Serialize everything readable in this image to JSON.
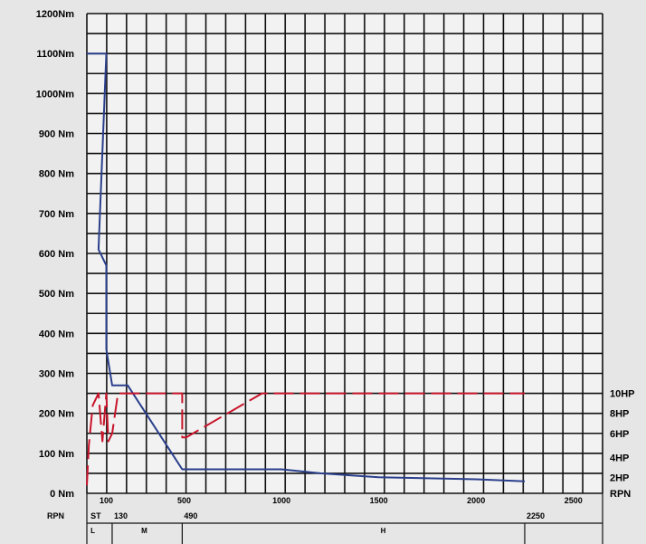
{
  "chart_data": {
    "type": "line",
    "y_axis": {
      "ticks": [
        "0   Nm",
        "100 Nm",
        "200 Nm",
        "300 Nm",
        "400 Nm",
        "500 Nm",
        "600 Nm",
        "700 Nm",
        "800 Nm",
        "900 Nm",
        "1000Nm",
        "1100Nm",
        "1200Nm"
      ],
      "tick_values": [
        0,
        100,
        200,
        300,
        400,
        500,
        600,
        700,
        800,
        900,
        1000,
        1100,
        1200
      ],
      "ylim": [
        0,
        1200
      ]
    },
    "x_axis": {
      "label": "RPN",
      "ticks": [
        "100",
        "500",
        "1000",
        "1500",
        "2000",
        "2500"
      ],
      "tick_values": [
        100,
        500,
        1000,
        1500,
        2000,
        2500
      ],
      "xlim": [
        0,
        2650
      ]
    },
    "secondary_axis": {
      "label": "RPN",
      "ticks": [
        "2HP",
        "4HP",
        "6HP",
        "8HP",
        "10HP"
      ],
      "tick_values": [
        40,
        90,
        150,
        200,
        250
      ]
    },
    "secondary_row": {
      "labels": [
        {
          "text": "ST",
          "x": 10
        },
        {
          "text": "130",
          "x": 130
        },
        {
          "text": "490",
          "x": 490
        },
        {
          "text": "2250",
          "x": 2250
        }
      ]
    },
    "bottom_row": {
      "labels": [
        {
          "text": "L",
          "x": 10
        },
        {
          "text": "M",
          "x": 270
        },
        {
          "text": "H",
          "x": 1500
        }
      ]
    },
    "grid": true,
    "series": [
      {
        "color": "#2a3f8c",
        "style": "solid",
        "x": [
          0,
          100,
          100,
          60,
          100,
          100,
          130,
          130,
          210,
          490,
          1000,
          1200,
          1500,
          2000,
          2250
        ],
        "y": [
          1100,
          1100,
          1100,
          610,
          570,
          360,
          270,
          270,
          270,
          60,
          60,
          50,
          40,
          35,
          30
        ]
      },
      {
        "color": "#c8142a",
        "style": "dashed",
        "x": [
          0,
          10,
          30,
          60,
          80,
          100,
          110,
          130,
          160,
          200,
          490,
          490,
          510,
          900,
          1500,
          2250
        ],
        "y": [
          20,
          120,
          220,
          250,
          130,
          250,
          130,
          150,
          250,
          250,
          250,
          140,
          140,
          250,
          250,
          250
        ]
      }
    ]
  }
}
